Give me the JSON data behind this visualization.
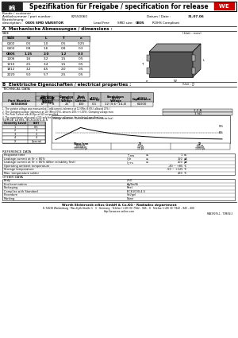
{
  "title": "Spezifikation für Freigabe / specification for release",
  "kunde_label": "Kunde / customer :",
  "artikel_label": "Artikelnummer / part number :",
  "artikel_number": "82550060",
  "datum_label": "Datum / Date :",
  "datum_value": "31.07.06",
  "bezeichnung_label": "Bezeichnung :",
  "description_label": "description :",
  "description_value": "0805 SMD VARISTOR",
  "lead_free": "Lead Free",
  "smd_size_label": "SMD size:",
  "smd_size_value": "0805",
  "rohs": "ROHS Compliant",
  "section_a": "A  Mechanische Abmessungen / dimensions :",
  "section_b": "B  Elektrische Eigenschaften / electrical properties :",
  "size_unit": "(Unit : mm)",
  "size_headers": [
    "SIZE",
    "W",
    "L",
    "T",
    "e"
  ],
  "size_rows": [
    [
      "0402",
      "0.5",
      "1.0",
      "0.5",
      "0.25"
    ],
    [
      "0403",
      "0.8",
      "1.6",
      "0.8",
      "0.3"
    ],
    [
      "0805",
      "1.25",
      "2.0",
      "1.2",
      "0.3"
    ],
    [
      "1206",
      "1.6",
      "3.2",
      "1.5",
      "0.5"
    ],
    [
      "1210",
      "2.5",
      "3.4",
      "1.5",
      "0.5"
    ],
    [
      "1812",
      "3.2",
      "4.5",
      "2.0",
      "0.5"
    ],
    [
      "2220",
      "5.0",
      "5.7",
      "2.5",
      "0.5"
    ]
  ],
  "tech_data_label": "TECHNICAL DATA",
  "tech_data_row": [
    "82550060",
    "6",
    "8",
    "20",
    "100",
    "0.1",
    "12 (9.6~14.4)",
    "61000"
  ],
  "footnotes": [
    "1. The varistor voltage was measured at 1 mA current, tolerance at 12 (Min=9.6%), allowed 20% (+/-10%)",
    "2. The Clamping voltage (tolerance at 10) (Min=10%), descent 20% (+/-10%). Clamping voltage measured at standard current(ty) :",
    "3. The Peak Current was 8/20μs at 625 as specified.",
    "4. The capacitance value and +/-5% only for customer reference, for technical specifications."
  ],
  "footnote_val1": "1.2 A",
  "footnote_val2": "1 kΩ",
  "surge_label": "SURGE LEVEL IEC61000-4-5",
  "surge_headers": [
    "Severity Level",
    "(kV)"
  ],
  "surge_rows": [
    [
      "1",
      "0.5"
    ],
    [
      "2",
      "1"
    ],
    [
      "3",
      "2"
    ],
    [
      "4",
      "4"
    ],
    [
      "X",
      "Special"
    ]
  ],
  "wave_label": "Voltage waveform / Current waveform (Connector box)",
  "wave_table": [
    [
      "Wave form",
      "T1",
      "T2"
    ],
    [
      "8/20 μs",
      "8 μs",
      "20 μs"
    ],
    [
      "10/700 μs",
      "10 μs",
      "700 μs"
    ],
    [
      "10/1000 μs",
      "10 μs",
      "1000 μs"
    ]
  ],
  "ref_data_label": "REFERENCE DATA",
  "ref_rows": [
    [
      "Response time",
      "T_res",
      "≤",
      "1",
      "ns"
    ],
    [
      "Leakage current at Vr × 80%",
      "I_re",
      "≤",
      "150",
      "μA"
    ],
    [
      "Leakage current at Vr × 80% (After reliability Test)",
      "I_r+s",
      "≤",
      "200",
      "μA"
    ],
    [
      "Operating ambient temperature",
      "",
      "",
      "-40 ~ +85",
      "°C"
    ],
    [
      "Storage temperature",
      "",
      "",
      "-50 ~ +125",
      "°C"
    ],
    [
      "Max. temperature solder",
      "",
      "",
      "260",
      "°C"
    ]
  ],
  "other_data_label": "OTHER DATA",
  "other_rows": [
    [
      "Body",
      "ZnO"
    ],
    [
      "End termination",
      "Ag/Sn/Ni"
    ],
    [
      "Packaging",
      "Reel"
    ],
    [
      "Complies with Standard",
      "IEC61000-4-5"
    ],
    [
      "Procedure",
      "Sol/gel"
    ],
    [
      "Marking",
      "None"
    ]
  ],
  "footer_company": "Würth Elektronik eiSos GmbH & Co.KG · Radiadex department",
  "footer_address": "D-74638 Waldenburg · Max-Eyth-Straße 1 · 3 · Germany · Telefon (+49) (0) 7942 - 945 - 0 · Telefax (+49) (0) 7942 - 945 - 400",
  "footer_web": "http://www.we-online.com",
  "page_ref": "PAB39076-1 - TCM/94-3",
  "bg_color": "#ffffff",
  "table_header_bg": "#bbbbbb",
  "highlighted_row_bg": "#cccccc"
}
